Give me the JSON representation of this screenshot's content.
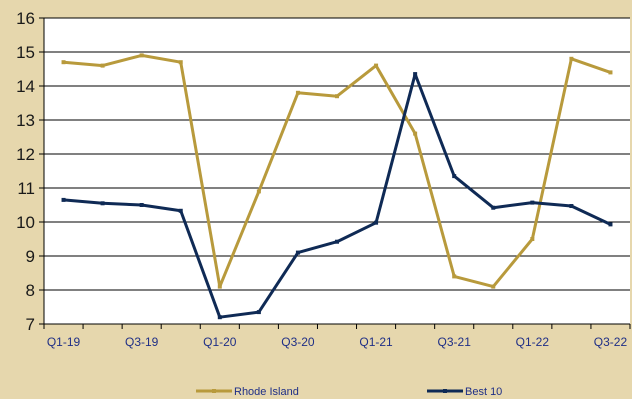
{
  "chart_data": {
    "type": "line",
    "categories": [
      "Q1-19",
      "Q2-19",
      "Q3-19",
      "Q4-19",
      "Q1-20",
      "Q2-20",
      "Q3-20",
      "Q4-20",
      "Q1-21",
      "Q2-21",
      "Q3-21",
      "Q4-21",
      "Q1-22",
      "Q2-22",
      "Q3-22"
    ],
    "xtick_labels": [
      "Q1-19",
      "Q3-19",
      "Q1-20",
      "Q3-20",
      "Q1-21",
      "Q3-21",
      "Q1-22",
      "Q3-22"
    ],
    "yticks": [
      "7",
      "8",
      "9",
      "10",
      "11",
      "12",
      "13",
      "14",
      "15",
      "16"
    ],
    "ylim": [
      7,
      16
    ],
    "grid": true,
    "legend_position": "bottom",
    "series": [
      {
        "name": "Rhode Island",
        "color": "#b89a3c",
        "values": [
          14.7,
          14.6,
          14.9,
          14.7,
          8.1,
          10.9,
          13.8,
          13.7,
          14.6,
          12.6,
          8.4,
          8.1,
          9.5,
          14.8,
          14.4
        ]
      },
      {
        "name": "Best 10",
        "color": "#0f2a55",
        "values": [
          10.65,
          10.55,
          10.5,
          10.33,
          7.2,
          7.35,
          9.1,
          9.42,
          9.98,
          14.35,
          11.35,
          10.42,
          10.57,
          10.47,
          9.93
        ]
      }
    ]
  }
}
